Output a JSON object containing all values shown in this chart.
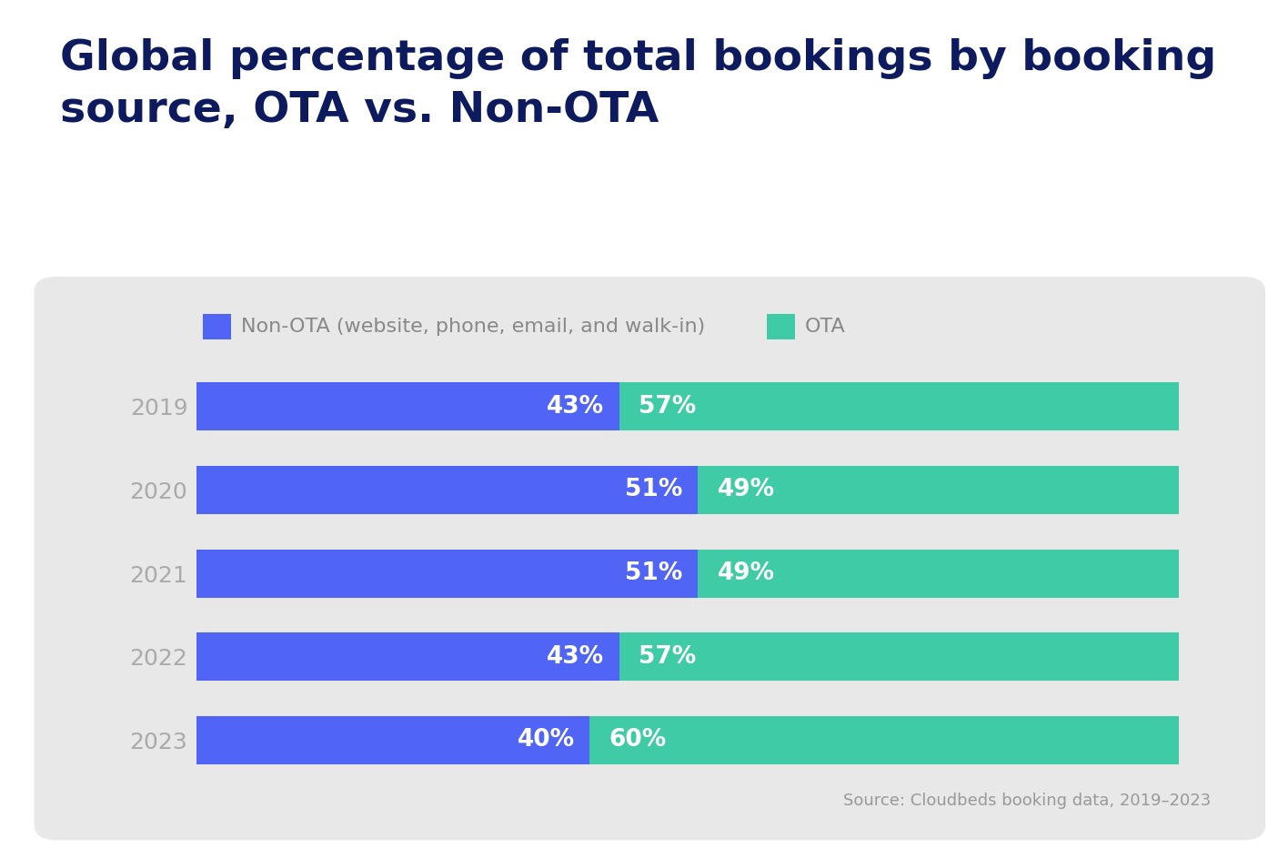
{
  "title_line1": "Global percentage of total bookings by booking",
  "title_line2": "source, OTA vs. Non-OTA",
  "title_color": "#0d1b5e",
  "title_fontsize": 34,
  "title_fontweight": "bold",
  "years": [
    "2019",
    "2020",
    "2021",
    "2022",
    "2023"
  ],
  "non_ota": [
    43,
    51,
    51,
    43,
    40
  ],
  "ota": [
    57,
    49,
    49,
    57,
    60
  ],
  "non_ota_color": "#5065f5",
  "ota_color": "#3ecba5",
  "bar_label_color": "#ffffff",
  "bar_label_fontsize": 19,
  "bar_label_fontweight": "bold",
  "year_label_color": "#aaaaaa",
  "year_label_fontsize": 18,
  "legend_fontsize": 16,
  "legend_color": "#888888",
  "legend_label_non_ota": "Non-OTA (website, phone, email, and walk-in)",
  "legend_label_ota": "OTA",
  "source_text": "Source: Cloudbeds booking data, 2019–2023",
  "source_fontsize": 13,
  "source_color": "#999999",
  "panel_color": "#e8e8e8",
  "outer_background": "#ffffff",
  "bar_height": 0.58
}
